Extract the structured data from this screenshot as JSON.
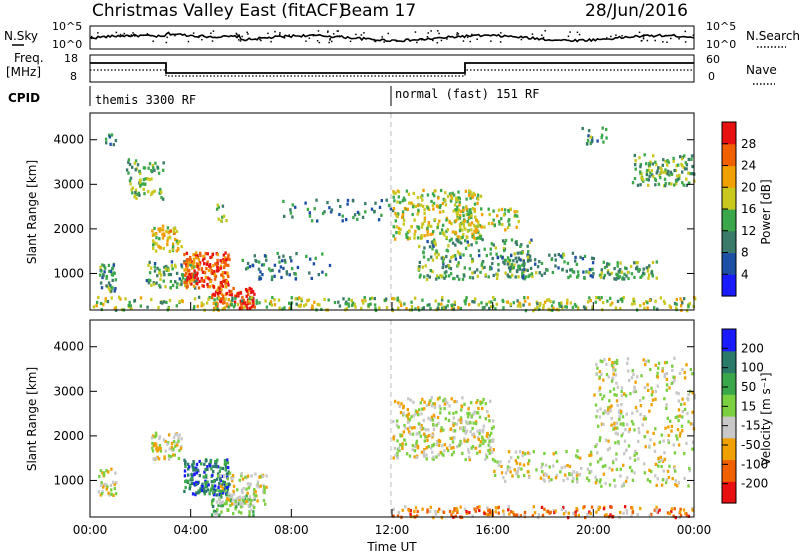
{
  "header": {
    "title": "Christmas Valley East (fitACF)",
    "beam": "Beam 17",
    "date": "28/Jun/2016"
  },
  "strip": {
    "nsky_label": "N.Sky",
    "nsky_ticks": [
      "10^5",
      "10^0"
    ],
    "nsearch_label": "N.Search",
    "nsearch_ticks": [
      "10^5",
      "10^0"
    ],
    "freq_label_line1": "Freq.",
    "freq_label_line2": "[MHz]",
    "freq_ticks": [
      "18",
      "8"
    ],
    "nave_label": "Nave",
    "nave_ticks": [
      "60",
      "0"
    ],
    "cpid_label": "CPID",
    "cpid_segments": [
      "themis 3300 RF",
      "normal (fast) 151 RF"
    ]
  },
  "chart_data": [
    {
      "type": "heatmap",
      "title": "",
      "xlabel": "",
      "ylabel": "Slant Range [km]",
      "yticks": [
        "1000",
        "2000",
        "3000",
        "4000"
      ],
      "ylim": [
        180,
        4600
      ],
      "xlim": [
        0,
        24
      ],
      "colorbar_label": "Power [dB]",
      "colorbar_ticks": [
        "4",
        "8",
        "12",
        "16",
        "20",
        "24",
        "28"
      ],
      "colorbar_range": [
        0,
        32
      ],
      "colors": [
        "#1a1aff",
        "#1e4fa6",
        "#3a7a6a",
        "#3aa84a",
        "#c8c81e",
        "#f0a000",
        "#f06000",
        "#e81010"
      ],
      "features": [
        {
          "t": [
            0.3,
            1.0
          ],
          "r": [
            600,
            1300
          ],
          "level": 0.35,
          "density": 0.55
        },
        {
          "t": [
            0.5,
            1.0
          ],
          "r": [
            3900,
            4150
          ],
          "level": 0.3,
          "density": 0.4
        },
        {
          "t": [
            1.4,
            2.9
          ],
          "r": [
            2700,
            3600
          ],
          "level": 0.45,
          "density": 0.35
        },
        {
          "t": [
            2.4,
            3.6
          ],
          "r": [
            1500,
            2100
          ],
          "level": 0.6,
          "density": 0.6
        },
        {
          "t": [
            2.2,
            4.2
          ],
          "r": [
            700,
            1300
          ],
          "level": 0.4,
          "density": 0.45
        },
        {
          "t": [
            3.7,
            5.5
          ],
          "r": [
            700,
            1500
          ],
          "level": 0.85,
          "density": 0.85
        },
        {
          "t": [
            4.8,
            6.5
          ],
          "r": [
            250,
            700
          ],
          "level": 0.9,
          "density": 0.8
        },
        {
          "t": [
            5.0,
            5.4
          ],
          "r": [
            2200,
            2600
          ],
          "level": 0.45,
          "density": 0.4
        },
        {
          "t": [
            6.0,
            9.5
          ],
          "r": [
            900,
            1500
          ],
          "level": 0.3,
          "density": 0.2
        },
        {
          "t": [
            7.5,
            12.0
          ],
          "r": [
            2200,
            2700
          ],
          "level": 0.3,
          "density": 0.15
        },
        {
          "t": [
            12.0,
            15.5
          ],
          "r": [
            1800,
            2900
          ],
          "level": 0.55,
          "density": 0.45
        },
        {
          "t": [
            13.0,
            17.5
          ],
          "r": [
            900,
            1800
          ],
          "level": 0.4,
          "density": 0.35
        },
        {
          "t": [
            14.5,
            17.0
          ],
          "r": [
            2000,
            2500
          ],
          "level": 0.55,
          "density": 0.35
        },
        {
          "t": [
            16.5,
            20.0
          ],
          "r": [
            900,
            1500
          ],
          "level": 0.35,
          "density": 0.3
        },
        {
          "t": [
            20.2,
            22.5
          ],
          "r": [
            900,
            1300
          ],
          "level": 0.45,
          "density": 0.55
        },
        {
          "t": [
            21.5,
            24.0
          ],
          "r": [
            3000,
            3700
          ],
          "level": 0.45,
          "density": 0.45
        },
        {
          "t": [
            19.5,
            20.5
          ],
          "r": [
            3900,
            4300
          ],
          "level": 0.35,
          "density": 0.3
        },
        {
          "t": [
            0.0,
            24.0
          ],
          "r": [
            200,
            500
          ],
          "level": 0.5,
          "density": 0.35
        }
      ]
    },
    {
      "type": "heatmap",
      "title": "",
      "xlabel": "Time UT",
      "ylabel": "Slant Range [km]",
      "yticks": [
        "1000",
        "2000",
        "3000",
        "4000"
      ],
      "ylim": [
        180,
        4600
      ],
      "xlim": [
        0,
        24
      ],
      "xticks": [
        "00:00",
        "04:00",
        "08:00",
        "12:00",
        "16:00",
        "20:00",
        "00:00"
      ],
      "colorbar_label": "Velocity [m s⁻¹]",
      "colorbar_ticks": [
        "200",
        "100",
        "50",
        "15",
        "-15",
        "-50",
        "-100",
        "-200"
      ],
      "colorbar_range": [
        -250,
        250
      ],
      "colors": [
        "#e81010",
        "#f06000",
        "#f0a000",
        "#c8c8c8",
        "#7ad040",
        "#3aa84a",
        "#2a7a6a",
        "#1a1aff"
      ],
      "features": [
        {
          "t": [
            0.3,
            1.0
          ],
          "r": [
            700,
            1300
          ],
          "level": 0.45,
          "density": 0.55
        },
        {
          "t": [
            2.4,
            3.6
          ],
          "r": [
            1500,
            2100
          ],
          "level": 0.45,
          "density": 0.6
        },
        {
          "t": [
            3.7,
            5.5
          ],
          "r": [
            700,
            1500
          ],
          "level": 0.8,
          "density": 0.85
        },
        {
          "t": [
            4.8,
            6.5
          ],
          "r": [
            250,
            700
          ],
          "level": 0.6,
          "density": 0.6
        },
        {
          "t": [
            5.0,
            7.0
          ],
          "r": [
            500,
            1200
          ],
          "level": 0.45,
          "density": 0.45
        },
        {
          "t": [
            12.0,
            16.0
          ],
          "r": [
            1500,
            2900
          ],
          "level": 0.45,
          "density": 0.4
        },
        {
          "t": [
            16.0,
            20.0
          ],
          "r": [
            1000,
            1700
          ],
          "level": 0.45,
          "density": 0.25
        },
        {
          "t": [
            20.0,
            24.0
          ],
          "r": [
            900,
            3800
          ],
          "level": 0.45,
          "density": 0.2
        },
        {
          "t": [
            12.0,
            24.0
          ],
          "r": [
            200,
            450
          ],
          "level": 0.25,
          "density": 0.4
        }
      ]
    }
  ]
}
